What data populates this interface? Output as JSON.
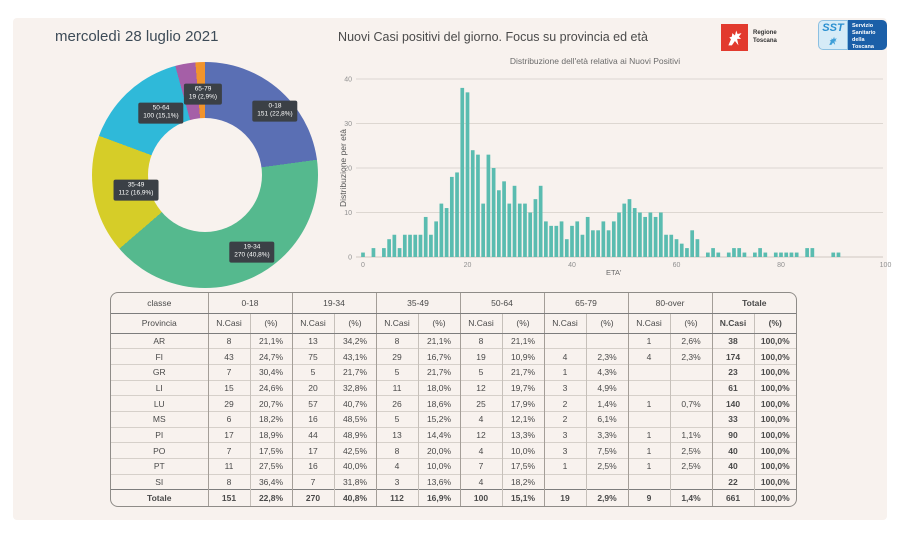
{
  "page": {
    "date": "mercoledì 28 luglio 2021",
    "title": "Nuovi Casi positivi del giorno. Focus su provincia ed età"
  },
  "logos": {
    "regione": {
      "label": "Regione Toscana"
    },
    "sst": {
      "abbr": "SST",
      "label": "Servizio Sanitario della Toscana"
    }
  },
  "colors": {
    "background": "#f8f2ee",
    "bar_fill": "#5abcb0",
    "label_box": "#3b4046",
    "gridline": "#ddd7d1"
  },
  "chart_data": [
    {
      "type": "pie",
      "donut": true,
      "labels": [
        "0-18",
        "19-34",
        "35-49",
        "50-64",
        "65-79",
        "80-over"
      ],
      "values": [
        151,
        270,
        112,
        100,
        19,
        9
      ],
      "pct_labels": [
        "22,8%",
        "40,8%",
        "16,9%",
        "15,1%",
        "2,9%",
        "1,4%"
      ],
      "colors": [
        "#5a6fb4",
        "#55b98e",
        "#d6cd28",
        "#2fb9d9",
        "#a55fa7",
        "#f1942d"
      ],
      "show_label": [
        true,
        true,
        true,
        true,
        true,
        false
      ],
      "legend_position": "on-slice"
    },
    {
      "type": "bar",
      "title": "Distribuzione dell'età relativa ai Nuovi Positivi",
      "xlabel": "ETA'",
      "ylabel": "Distribuzione per età",
      "xlim": [
        0,
        100
      ],
      "ylim": [
        0,
        40
      ],
      "x_ticks": [
        0,
        20,
        40,
        60,
        80,
        100
      ],
      "y_ticks": [
        0,
        10,
        20,
        30,
        40
      ],
      "grid": true,
      "x_start_age": 0,
      "values": [
        1,
        0,
        2,
        0,
        2,
        4,
        5,
        2,
        5,
        5,
        5,
        5,
        9,
        5,
        8,
        12,
        11,
        18,
        19,
        38,
        37,
        24,
        23,
        12,
        23,
        20,
        15,
        17,
        12,
        16,
        12,
        12,
        10,
        13,
        16,
        8,
        7,
        7,
        8,
        4,
        7,
        8,
        5,
        9,
        6,
        6,
        8,
        6,
        8,
        10,
        12,
        13,
        11,
        10,
        9,
        10,
        9,
        10,
        5,
        5,
        4,
        3,
        2,
        6,
        4,
        0,
        1,
        2,
        1,
        0,
        1,
        2,
        2,
        1,
        0,
        1,
        2,
        1,
        0,
        1,
        1,
        1,
        1,
        1,
        0,
        2,
        2,
        0,
        0,
        0,
        1,
        1,
        0,
        0,
        0,
        0,
        0,
        0,
        0,
        0,
        0
      ]
    }
  ],
  "table": {
    "group_headers": [
      "classe",
      "0-18",
      "19-34",
      "35-49",
      "50-64",
      "65-79",
      "80-over",
      "Totale"
    ],
    "sub_headers": {
      "first": "Provincia",
      "n_casi": "N.Casi",
      "pct": "(%)"
    },
    "rows": [
      {
        "provincia": "AR",
        "cells": [
          "8",
          "21,1%",
          "13",
          "34,2%",
          "8",
          "21,1%",
          "8",
          "21,1%",
          "",
          "",
          "1",
          "2,6%",
          "38",
          "100,0%"
        ]
      },
      {
        "provincia": "FI",
        "cells": [
          "43",
          "24,7%",
          "75",
          "43,1%",
          "29",
          "16,7%",
          "19",
          "10,9%",
          "4",
          "2,3%",
          "4",
          "2,3%",
          "174",
          "100,0%"
        ]
      },
      {
        "provincia": "GR",
        "cells": [
          "7",
          "30,4%",
          "5",
          "21,7%",
          "5",
          "21,7%",
          "5",
          "21,7%",
          "1",
          "4,3%",
          "",
          "",
          "23",
          "100,0%"
        ]
      },
      {
        "provincia": "LI",
        "cells": [
          "15",
          "24,6%",
          "20",
          "32,8%",
          "11",
          "18,0%",
          "12",
          "19,7%",
          "3",
          "4,9%",
          "",
          "",
          "61",
          "100,0%"
        ]
      },
      {
        "provincia": "LU",
        "cells": [
          "29",
          "20,7%",
          "57",
          "40,7%",
          "26",
          "18,6%",
          "25",
          "17,9%",
          "2",
          "1,4%",
          "1",
          "0,7%",
          "140",
          "100,0%"
        ]
      },
      {
        "provincia": "MS",
        "cells": [
          "6",
          "18,2%",
          "16",
          "48,5%",
          "5",
          "15,2%",
          "4",
          "12,1%",
          "2",
          "6,1%",
          "",
          "",
          "33",
          "100,0%"
        ]
      },
      {
        "provincia": "PI",
        "cells": [
          "17",
          "18,9%",
          "44",
          "48,9%",
          "13",
          "14,4%",
          "12",
          "13,3%",
          "3",
          "3,3%",
          "1",
          "1,1%",
          "90",
          "100,0%"
        ]
      },
      {
        "provincia": "PO",
        "cells": [
          "7",
          "17,5%",
          "17",
          "42,5%",
          "8",
          "20,0%",
          "4",
          "10,0%",
          "3",
          "7,5%",
          "1",
          "2,5%",
          "40",
          "100,0%"
        ]
      },
      {
        "provincia": "PT",
        "cells": [
          "11",
          "27,5%",
          "16",
          "40,0%",
          "4",
          "10,0%",
          "7",
          "17,5%",
          "1",
          "2,5%",
          "1",
          "2,5%",
          "40",
          "100,0%"
        ]
      },
      {
        "provincia": "SI",
        "cells": [
          "8",
          "36,4%",
          "7",
          "31,8%",
          "3",
          "13,6%",
          "4",
          "18,2%",
          "",
          "",
          "",
          "",
          "22",
          "100,0%"
        ]
      }
    ],
    "total_row": {
      "provincia": "Totale",
      "cells": [
        "151",
        "22,8%",
        "270",
        "40,8%",
        "112",
        "16,9%",
        "100",
        "15,1%",
        "19",
        "2,9%",
        "9",
        "1,4%",
        "661",
        "100,0%"
      ]
    }
  }
}
